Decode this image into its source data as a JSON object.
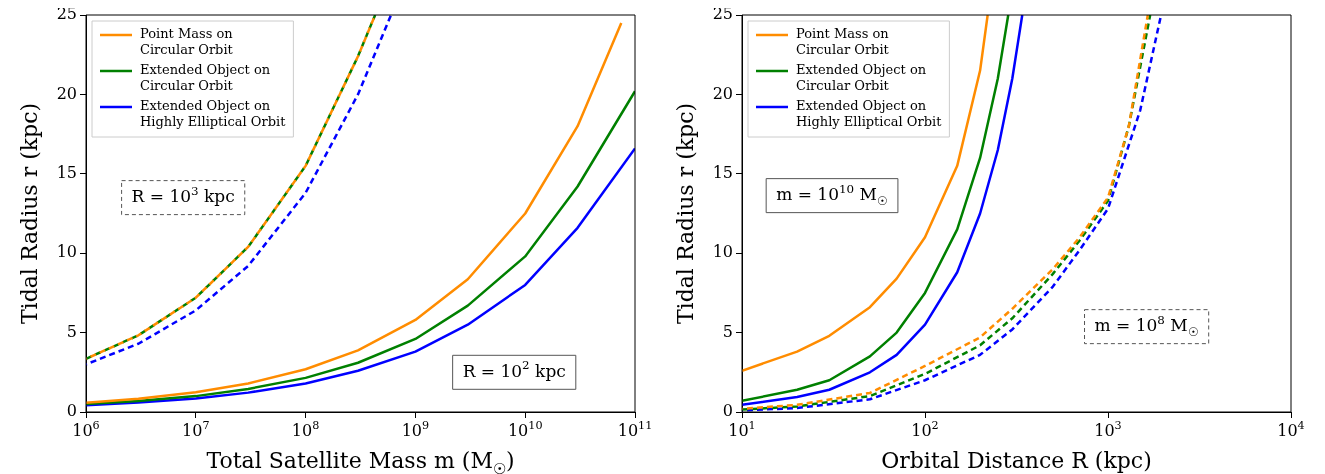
{
  "chart_data": [
    {
      "type": "line",
      "xlabel": "Total Satellite Mass m (M$_{☉}$)",
      "ylabel": "Tidal Radius r (kpc)",
      "log": "x",
      "grid": false,
      "legend": "top left",
      "xlim": [
        1000000,
        100000000000
      ],
      "xticks": [
        {
          "value": 1000000,
          "label": "10$^{6}$"
        },
        {
          "value": 10000000,
          "label": "10$^{7}$"
        },
        {
          "value": 100000000,
          "label": "10$^{8}$"
        },
        {
          "value": 1000000000,
          "label": "10$^{9}$"
        },
        {
          "value": 10000000000,
          "label": "10$^{10}$"
        },
        {
          "value": 100000000000,
          "label": "10$^{11}$"
        }
      ],
      "ylim": [
        0,
        25
      ],
      "yticks": [
        0,
        5,
        10,
        15,
        20,
        25
      ],
      "annotations": [
        "R = 10$^{3}$ kpc",
        "R = 10$^{2}$ kpc"
      ],
      "series": [
        {
          "name": "Point Mass on Circular Orbit",
          "color": "#ff8c00",
          "line_style": "solid",
          "x": [
            1000000,
            3000000,
            10000000,
            30000000,
            100000000,
            300000000,
            1000000000,
            3000000000,
            10000000000,
            30000000000,
            75000000000
          ],
          "values": [
            0.58,
            0.84,
            1.25,
            1.8,
            2.69,
            3.88,
            5.8,
            8.36,
            12.5,
            18.0,
            24.5
          ]
        },
        {
          "name": "Extended Object on Circular Orbit",
          "color": "#008000",
          "line_style": "solid",
          "x": [
            1000000,
            3000000,
            10000000,
            30000000,
            100000000,
            300000000,
            1000000000,
            3000000000,
            10000000000,
            30000000000,
            100000000000
          ],
          "values": [
            0.5,
            0.7,
            1.0,
            1.45,
            2.15,
            3.1,
            4.6,
            6.7,
            9.8,
            14.2,
            20.2
          ]
        },
        {
          "name": "Extended Object on Highly Elliptical Orbit",
          "color": "#0000ff",
          "line_style": "solid",
          "x": [
            1000000,
            3000000,
            10000000,
            30000000,
            100000000,
            300000000,
            1000000000,
            3000000000,
            10000000000,
            30000000000,
            100000000000
          ],
          "values": [
            0.42,
            0.6,
            0.85,
            1.22,
            1.8,
            2.6,
            3.8,
            5.5,
            8.0,
            11.6,
            16.6
          ]
        },
        {
          "color": "#ff8c00",
          "line_style": "dashed",
          "x": [
            1000000,
            3000000,
            10000000,
            30000000,
            100000000,
            300000000,
            430000000
          ],
          "values": [
            3.35,
            4.83,
            7.2,
            10.4,
            15.5,
            22.4,
            25
          ]
        },
        {
          "color": "#008000",
          "line_style": "dashed",
          "x": [
            1000000,
            3000000,
            10000000,
            30000000,
            100000000,
            300000000,
            430000000
          ],
          "values": [
            3.35,
            4.83,
            7.2,
            10.4,
            15.5,
            22.4,
            25
          ]
        },
        {
          "color": "#0000ff",
          "line_style": "dashed",
          "x": [
            1000000,
            3000000,
            10000000,
            30000000,
            100000000,
            300000000,
            600000000
          ],
          "values": [
            3.0,
            4.3,
            6.4,
            9.2,
            13.8,
            20,
            25
          ]
        }
      ]
    },
    {
      "type": "line",
      "xlabel": "Orbital Distance R (kpc)",
      "ylabel": "Tidal Radius r (kpc)",
      "log": "x",
      "grid": false,
      "legend": "top left",
      "xlim": [
        10,
        10000
      ],
      "xticks": [
        {
          "value": 10,
          "label": "10$^{1}$"
        },
        {
          "value": 100,
          "label": "10$^{2}$"
        },
        {
          "value": 1000,
          "label": "10$^{3}$"
        },
        {
          "value": 10000,
          "label": "10$^{4}$"
        }
      ],
      "ylim": [
        0,
        25
      ],
      "yticks": [
        0,
        5,
        10,
        15,
        20,
        25
      ],
      "annotations": [
        "m = 10$^{10}$ M$_{☉}$",
        "m = 10$^{8}$ M$_{☉}$"
      ],
      "series": [
        {
          "name": "Point Mass on Circular Orbit",
          "color": "#ff8c00",
          "line_style": "solid",
          "x": [
            10,
            20,
            30,
            50,
            70,
            100,
            150,
            200,
            220
          ],
          "values": [
            2.6,
            3.8,
            4.8,
            6.6,
            8.4,
            11,
            15.5,
            21.5,
            25
          ]
        },
        {
          "name": "Extended Object on Circular Orbit",
          "color": "#008000",
          "line_style": "solid",
          "x": [
            10,
            20,
            30,
            50,
            70,
            100,
            150,
            200,
            250,
            285
          ],
          "values": [
            0.7,
            1.4,
            2.0,
            3.5,
            5,
            7.5,
            11.5,
            16,
            21,
            25
          ]
        },
        {
          "name": "Extended Object on Highly Elliptical Orbit",
          "color": "#0000ff",
          "line_style": "solid",
          "x": [
            10,
            20,
            30,
            50,
            70,
            100,
            150,
            200,
            250,
            300,
            340
          ],
          "values": [
            0.45,
            0.95,
            1.4,
            2.5,
            3.6,
            5.5,
            8.8,
            12.5,
            16.5,
            21,
            25
          ]
        },
        {
          "color": "#ff8c00",
          "line_style": "dashed",
          "x": [
            10,
            20,
            50,
            100,
            200,
            300,
            500,
            700,
            1000,
            1300,
            1650
          ],
          "values": [
            0.2,
            0.45,
            1.2,
            2.9,
            4.7,
            6.5,
            9,
            11,
            13.5,
            18,
            25
          ]
        },
        {
          "color": "#008000",
          "line_style": "dashed",
          "x": [
            10,
            20,
            50,
            100,
            200,
            300,
            500,
            700,
            1000,
            1300,
            1700
          ],
          "values": [
            0.15,
            0.35,
            1.0,
            2.4,
            4.2,
            5.9,
            8.7,
            10.8,
            13.3,
            18,
            25
          ]
        },
        {
          "color": "#0000ff",
          "line_style": "dashed",
          "x": [
            10,
            20,
            50,
            100,
            200,
            300,
            500,
            700,
            1000,
            1500,
            1950
          ],
          "values": [
            0.1,
            0.25,
            0.8,
            2.0,
            3.6,
            5.2,
            7.9,
            10.2,
            12.8,
            19,
            25
          ]
        }
      ]
    }
  ]
}
